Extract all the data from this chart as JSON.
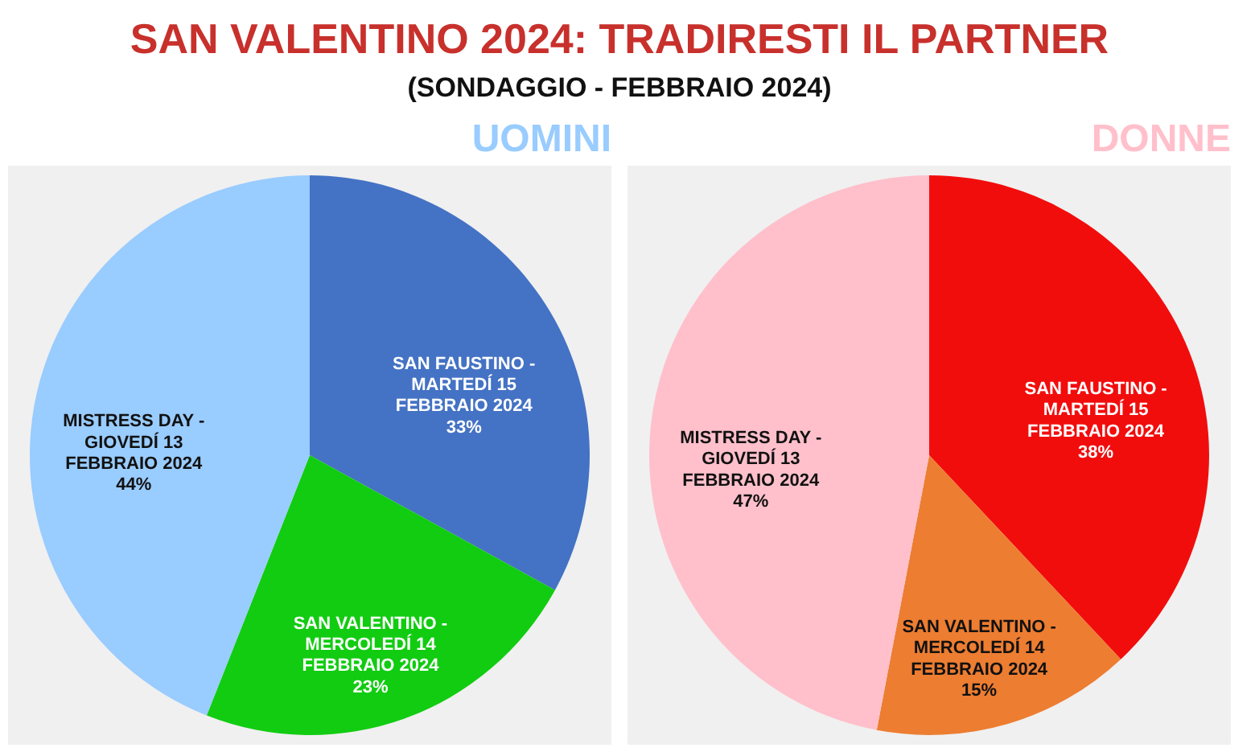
{
  "chart_data": [
    {
      "type": "other",
      "title": "SAN VALENTINO 2024: TRADIRESTI IL PARTNER",
      "subtitle": "(SONDAGGIO - FEBBRAIO 2024)"
    },
    {
      "type": "pie",
      "title": "UOMINI",
      "categories": [
        "SAN FAUSTINO - MARTEDÍ 15 FEBBRAIO 2024",
        "SAN VALENTINO - MERCOLEDÍ 14 FEBBRAIO 2024",
        "MISTRESS DAY - GIOVEDÍ 13 FEBBRAIO 2024"
      ],
      "values": [
        33,
        23,
        44
      ],
      "value_labels": [
        "33%",
        "23%",
        "44%"
      ],
      "colors": [
        "#4472c4",
        "#11cc11",
        "#99ccff"
      ]
    },
    {
      "type": "pie",
      "title": "DONNE",
      "categories": [
        "SAN FAUSTINO - MARTEDÍ 15 FEBBRAIO 2024",
        "SAN VALENTINO - MERCOLEDÍ 14 FEBBRAIO 2024",
        "MISTRESS DAY - GIOVEDÍ 13 FEBBRAIO 2024"
      ],
      "values": [
        38,
        15,
        47
      ],
      "value_labels": [
        "38%",
        "15%",
        "47%"
      ],
      "colors": [
        "#f20d0d",
        "#ed7d31",
        "#ffc0cb"
      ]
    }
  ]
}
